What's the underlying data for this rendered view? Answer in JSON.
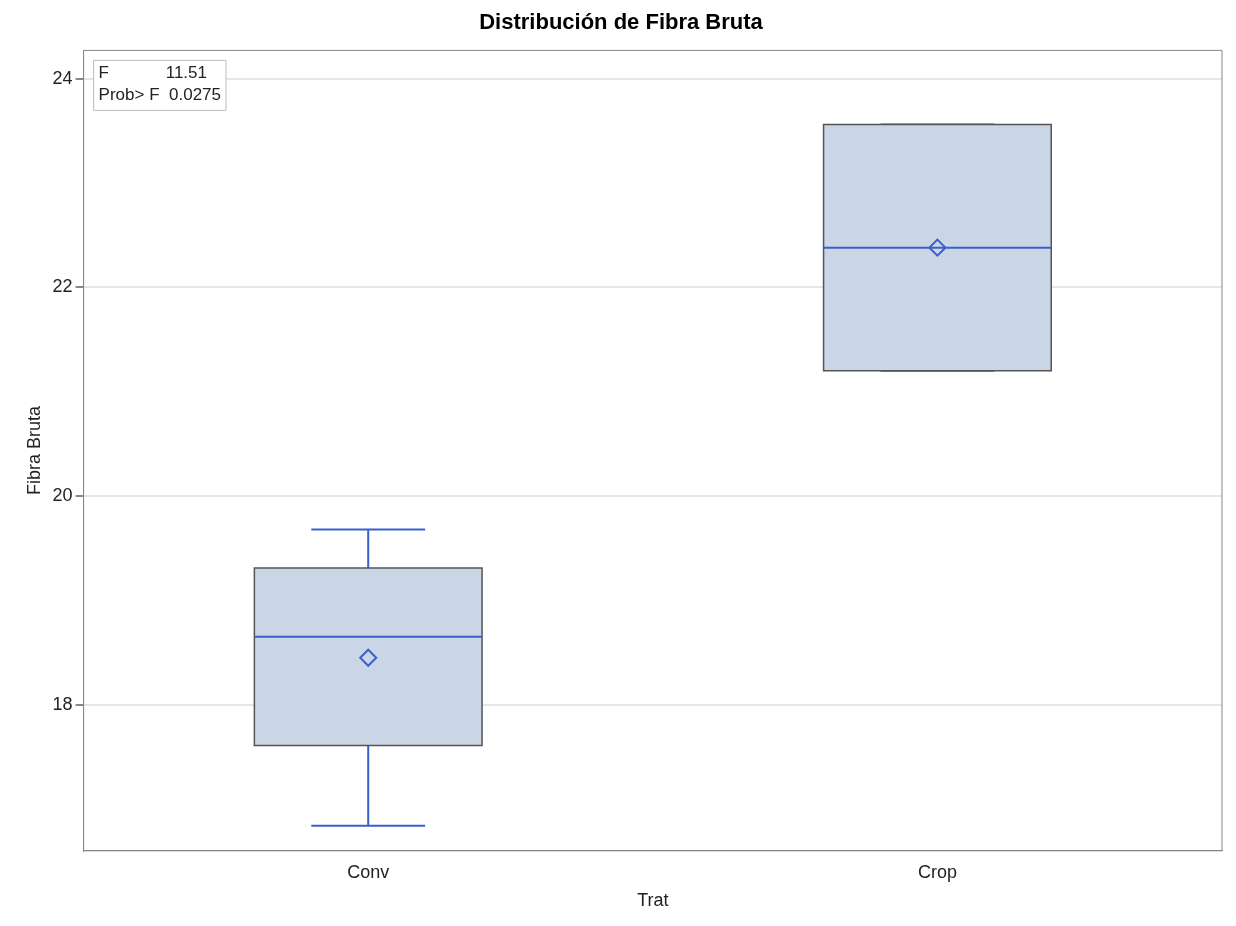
{
  "chart_data": {
    "type": "box",
    "title": "Distribución de Fibra Bruta",
    "xlabel": "Trat",
    "ylabel": "Fibra Bruta",
    "categories": [
      "Conv",
      "Crop"
    ],
    "color": "#cad5e5",
    "boxes": [
      {
        "low": 16.84,
        "q1": 17.61,
        "median": 18.65,
        "q3": 19.31,
        "high": 19.68,
        "mean": 18.45
      },
      {
        "low": 21.2,
        "q1": 21.2,
        "median": 22.38,
        "q3": 23.56,
        "high": 23.56,
        "mean": 22.38
      }
    ],
    "marker": "diamond",
    "ylim": [
      16.6,
      24.27
    ],
    "yticks": [
      18,
      20,
      22,
      24
    ],
    "grid": "y",
    "legend": false,
    "annotations": [
      "F            11.51",
      "Prob> F  0.0275"
    ]
  }
}
